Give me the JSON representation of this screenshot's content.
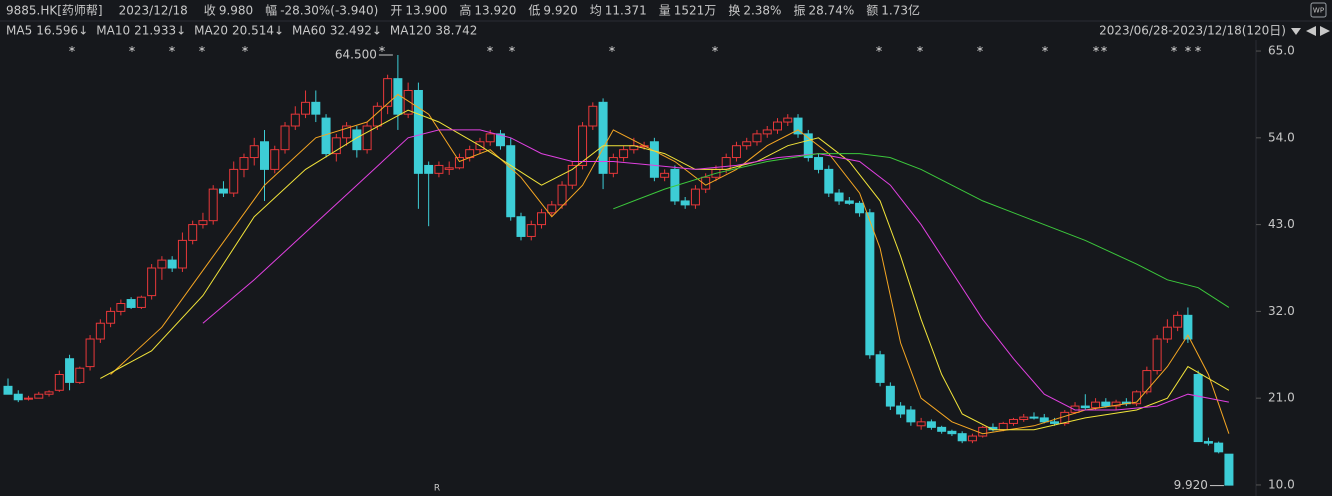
{
  "header": {
    "symbol": "9885.HK[药师帮]",
    "date": "2023/12/18",
    "fields": [
      {
        "label": "收",
        "value": "9.980",
        "color": "#3fcf5f"
      },
      {
        "label": "幅",
        "value": "-28.30%(-3.940)",
        "color": "#3fcf5f"
      },
      {
        "label": "开",
        "value": "13.900",
        "color": "#3fcf5f"
      },
      {
        "label": "高",
        "value": "13.920",
        "color": "#d8d8d8"
      },
      {
        "label": "低",
        "value": "9.920",
        "color": "#3fcf5f"
      },
      {
        "label": "均",
        "value": "11.371",
        "color": "#3fcf5f"
      },
      {
        "label": "量",
        "value": "1521万",
        "color": "#d8d8d8"
      },
      {
        "label": "换",
        "value": "2.38%",
        "color": "#d8d8d8"
      },
      {
        "label": "振",
        "value": "28.74%",
        "color": "#d8d8d8"
      },
      {
        "label": "额",
        "value": "1.73亿",
        "color": "#d8d8d8"
      }
    ],
    "icon_label": "WP"
  },
  "ma_legend": [
    {
      "name": "MA5",
      "value": "16.596↓",
      "color": "#f5a623"
    },
    {
      "name": "MA10",
      "value": "21.933↓",
      "color": "#f2e43a"
    },
    {
      "name": "MA20",
      "value": "20.514↓",
      "color": "#e040e0"
    },
    {
      "name": "MA60",
      "value": "32.492↓",
      "color": "#3cc83c"
    },
    {
      "name": "MA120",
      "value": "38.742",
      "color": "#4fc8e0"
    }
  ],
  "range_label": "2023/06/28-2023/12/18(120日)",
  "bottom_marker": "R",
  "chart_data": {
    "type": "candlestick",
    "up_color": "#e8383a",
    "down_color": "#3dcdd6",
    "ylim": [
      8.6,
      66.4
    ],
    "yticks": [
      {
        "value": 65,
        "label": "65.0"
      },
      {
        "value": 54,
        "label": "54.0"
      },
      {
        "value": 43,
        "label": "43.0"
      },
      {
        "value": 32,
        "label": "32.0"
      },
      {
        "value": 21,
        "label": "21.0"
      },
      {
        "value": 10,
        "label": "10.0"
      }
    ],
    "candles": [
      [
        22.5,
        23.5,
        21.5,
        21.5
      ],
      [
        21.5,
        22,
        20.5,
        20.8
      ],
      [
        21,
        21.3,
        20.7,
        21
      ],
      [
        21,
        21.8,
        21,
        21.5
      ],
      [
        21.5,
        22,
        21.2,
        21.8
      ],
      [
        22,
        24.5,
        21.8,
        24
      ],
      [
        26,
        26.5,
        22,
        23
      ],
      [
        23,
        25,
        22.8,
        24.8
      ],
      [
        25,
        29,
        24.5,
        28.5
      ],
      [
        28.5,
        31,
        28,
        30.5
      ],
      [
        30.5,
        32.5,
        30,
        32
      ],
      [
        32,
        33.5,
        31.5,
        33
      ],
      [
        33.5,
        33.8,
        32.3,
        32.5
      ],
      [
        32.5,
        34,
        32.3,
        33.8
      ],
      [
        34,
        38,
        33.5,
        37.5
      ],
      [
        37.5,
        39,
        36,
        38.5
      ],
      [
        38.5,
        39,
        37,
        37.5
      ],
      [
        37.5,
        42,
        37,
        41
      ],
      [
        41,
        43.5,
        40.5,
        43
      ],
      [
        43,
        44.5,
        42.5,
        43.5
      ],
      [
        43.5,
        48,
        43,
        47.5
      ],
      [
        47.5,
        48.5,
        46.5,
        47
      ],
      [
        47,
        51,
        46.5,
        50
      ],
      [
        50,
        52,
        49,
        51.5
      ],
      [
        51.5,
        54,
        50.5,
        53
      ],
      [
        53.5,
        55,
        46,
        50
      ],
      [
        50,
        53,
        49.5,
        52.5
      ],
      [
        52.5,
        56,
        52,
        55.5
      ],
      [
        55.5,
        58,
        55,
        57
      ],
      [
        57,
        60,
        56.5,
        58.5
      ],
      [
        58.5,
        60,
        56,
        57
      ],
      [
        56.5,
        57,
        51.5,
        52
      ],
      [
        52,
        54.5,
        51,
        54
      ],
      [
        54,
        56,
        53,
        55.5
      ],
      [
        55,
        55.5,
        51.5,
        52.5
      ],
      [
        52.5,
        56,
        52,
        55.5
      ],
      [
        55.5,
        58.5,
        55,
        58
      ],
      [
        58,
        62,
        57,
        61.5
      ],
      [
        61.5,
        64.5,
        55,
        57
      ],
      [
        57,
        61,
        56.5,
        60
      ],
      [
        60,
        61,
        45,
        49.5
      ],
      [
        50.5,
        51,
        42.8,
        49.5
      ],
      [
        49.5,
        51,
        49,
        50.5
      ],
      [
        50,
        51,
        49.3,
        50.2
      ],
      [
        50.2,
        52,
        50,
        51.5
      ],
      [
        51.5,
        53,
        51,
        52.5
      ],
      [
        52.5,
        54,
        52,
        53.5
      ],
      [
        53.5,
        55,
        53,
        54.5
      ],
      [
        54.5,
        55,
        52.5,
        53
      ],
      [
        53,
        54,
        43.5,
        44
      ],
      [
        44,
        44.5,
        41,
        41.5
      ],
      [
        41.5,
        43.5,
        41,
        43
      ],
      [
        43,
        45,
        42.5,
        44.5
      ],
      [
        44.5,
        46,
        44,
        45.5
      ],
      [
        45.5,
        48.5,
        45,
        48
      ],
      [
        48,
        51,
        47.5,
        50.5
      ],
      [
        50.5,
        56,
        50,
        55.5
      ],
      [
        55.5,
        58.5,
        55,
        58
      ],
      [
        58.5,
        59,
        47.5,
        49.5
      ],
      [
        49.5,
        52,
        49,
        51.5
      ],
      [
        51.5,
        53,
        51,
        52.5
      ],
      [
        52.5,
        54,
        52,
        53
      ],
      [
        53,
        53.5,
        52.5,
        53
      ],
      [
        53.5,
        54,
        48.5,
        49
      ],
      [
        49,
        50,
        48.5,
        49.5
      ],
      [
        50,
        50.5,
        45.5,
        46
      ],
      [
        46,
        46.5,
        45,
        45.5
      ],
      [
        45.5,
        48,
        45,
        47.5
      ],
      [
        47.5,
        49.5,
        47,
        49
      ],
      [
        49,
        50.5,
        48.5,
        50
      ],
      [
        50,
        52,
        49.5,
        51.5
      ],
      [
        51.5,
        53.5,
        51,
        53
      ],
      [
        53,
        54,
        52.5,
        53.5
      ],
      [
        53.5,
        55,
        53,
        54.5
      ],
      [
        54.5,
        55.5,
        54,
        55
      ],
      [
        55,
        56.5,
        54.5,
        56
      ],
      [
        56,
        57,
        55.5,
        56.5
      ],
      [
        56.5,
        57,
        54,
        54.5
      ],
      [
        54.5,
        55,
        51,
        51.5
      ],
      [
        51.5,
        52,
        49.5,
        50
      ],
      [
        50,
        50.5,
        46.5,
        47
      ],
      [
        47,
        47.5,
        45.5,
        46
      ],
      [
        46,
        46.5,
        45.5,
        45.7
      ],
      [
        45.7,
        46,
        44,
        44.5
      ],
      [
        44.5,
        45,
        26,
        26.5
      ],
      [
        26.5,
        27,
        22.5,
        23
      ],
      [
        22.5,
        23,
        19.5,
        20
      ],
      [
        20,
        20.5,
        18.5,
        19
      ],
      [
        19.5,
        20,
        17.5,
        18
      ],
      [
        17.5,
        18.5,
        17,
        18
      ],
      [
        18,
        18.3,
        17,
        17.3
      ],
      [
        17.3,
        17.5,
        16.5,
        16.8
      ],
      [
        16.8,
        17,
        16.2,
        16.5
      ],
      [
        16.5,
        16.8,
        15.3,
        15.6
      ],
      [
        15.6,
        16.5,
        15.3,
        16.2
      ],
      [
        16.2,
        17.5,
        16,
        17.3
      ],
      [
        17.3,
        17.8,
        16.8,
        17
      ],
      [
        17,
        18,
        16.8,
        17.8
      ],
      [
        17.8,
        18.5,
        17.5,
        18.3
      ],
      [
        18.3,
        19,
        18,
        18.6
      ],
      [
        18.6,
        19.2,
        18.3,
        18.5
      ],
      [
        18.5,
        19,
        17.8,
        18
      ],
      [
        18,
        18.5,
        17.5,
        17.8
      ],
      [
        17.8,
        19.5,
        17.5,
        19.2
      ],
      [
        19.2,
        20.5,
        19,
        20
      ],
      [
        20,
        21.5,
        19.5,
        19.8
      ],
      [
        19.8,
        21,
        19.5,
        20.5
      ],
      [
        20.5,
        21,
        19.8,
        20
      ],
      [
        20,
        20.8,
        19.5,
        20.5
      ],
      [
        20.5,
        21,
        20,
        20.3
      ],
      [
        20.3,
        22,
        20,
        21.8
      ],
      [
        21.8,
        25,
        21.5,
        24.5
      ],
      [
        24.5,
        29,
        24,
        28.5
      ],
      [
        28.5,
        31,
        28,
        30
      ],
      [
        30,
        32,
        29.5,
        31.5
      ],
      [
        31.5,
        32.5,
        28,
        28.5
      ],
      [
        24,
        24.5,
        15.5,
        15.5
      ],
      [
        15.5,
        16,
        15,
        15.3
      ],
      [
        15.3,
        15.5,
        14,
        14.2
      ],
      [
        13.9,
        13.92,
        9.92,
        9.98
      ]
    ],
    "series": [
      {
        "name": "MA5",
        "color": "#f5a623",
        "x": [
          10,
          15,
          20,
          25,
          30,
          35,
          38,
          41,
          44,
          47,
          50,
          53,
          56,
          59,
          62,
          65,
          68,
          71,
          74,
          77,
          80,
          83,
          85,
          87,
          89,
          92,
          95,
          100,
          105,
          110,
          113,
          115,
          117,
          119
        ],
        "values": [
          24,
          30,
          39,
          48,
          54,
          56,
          59.5,
          57,
          51,
          52.5,
          49,
          44,
          48,
          55,
          53,
          51,
          48,
          50,
          53,
          55,
          52,
          47,
          40,
          28,
          21,
          18,
          16.5,
          17.5,
          19.5,
          20.5,
          25,
          29,
          24,
          16.5
        ]
      },
      {
        "name": "MA10",
        "color": "#f2e43a",
        "x": [
          9,
          14,
          19,
          24,
          29,
          34,
          39,
          42,
          46,
          49,
          52,
          55,
          58,
          61,
          64,
          67,
          70,
          73,
          76,
          79,
          82,
          85,
          87,
          89,
          91,
          93,
          96,
          100,
          105,
          110,
          113,
          115,
          117,
          119
        ],
        "values": [
          23.5,
          27,
          34,
          44,
          50,
          54,
          57.5,
          56,
          53,
          50.5,
          48,
          50,
          53,
          53,
          52,
          50,
          50,
          51,
          53,
          54,
          51,
          46,
          39,
          31,
          24,
          19,
          17,
          17,
          18.5,
          19.5,
          21,
          25,
          23.5,
          22
        ]
      },
      {
        "name": "MA20",
        "color": "#e040e0",
        "x": [
          19,
          24,
          29,
          34,
          39,
          42,
          46,
          49,
          52,
          55,
          59,
          63,
          67,
          71,
          75,
          79,
          83,
          86,
          89,
          92,
          95,
          98,
          101,
          104,
          108,
          112,
          115,
          119
        ],
        "values": [
          30.5,
          36,
          42,
          48,
          54,
          55,
          55,
          54,
          52,
          51,
          51,
          50.5,
          50,
          50.5,
          51.5,
          52,
          51,
          48,
          43,
          37,
          31,
          26,
          21.5,
          19.5,
          19.5,
          20,
          21.5,
          20.5
        ]
      },
      {
        "name": "MA60",
        "color": "#3cc83c",
        "x": [
          59,
          64,
          69,
          74,
          79,
          83,
          86,
          89,
          92,
          95,
          100,
          105,
          110,
          113,
          116,
          119
        ],
        "values": [
          45,
          47.5,
          49.5,
          51,
          52,
          52,
          51.5,
          50,
          48,
          46,
          43.5,
          41,
          38,
          36,
          35,
          32.5
        ]
      }
    ],
    "annotations": [
      {
        "text": "64.500",
        "value": 64.5,
        "index": 38,
        "color": "#e8383a"
      },
      {
        "text": "9.920",
        "value": 9.92,
        "index": 119,
        "color": "#3fcf5f"
      }
    ]
  }
}
